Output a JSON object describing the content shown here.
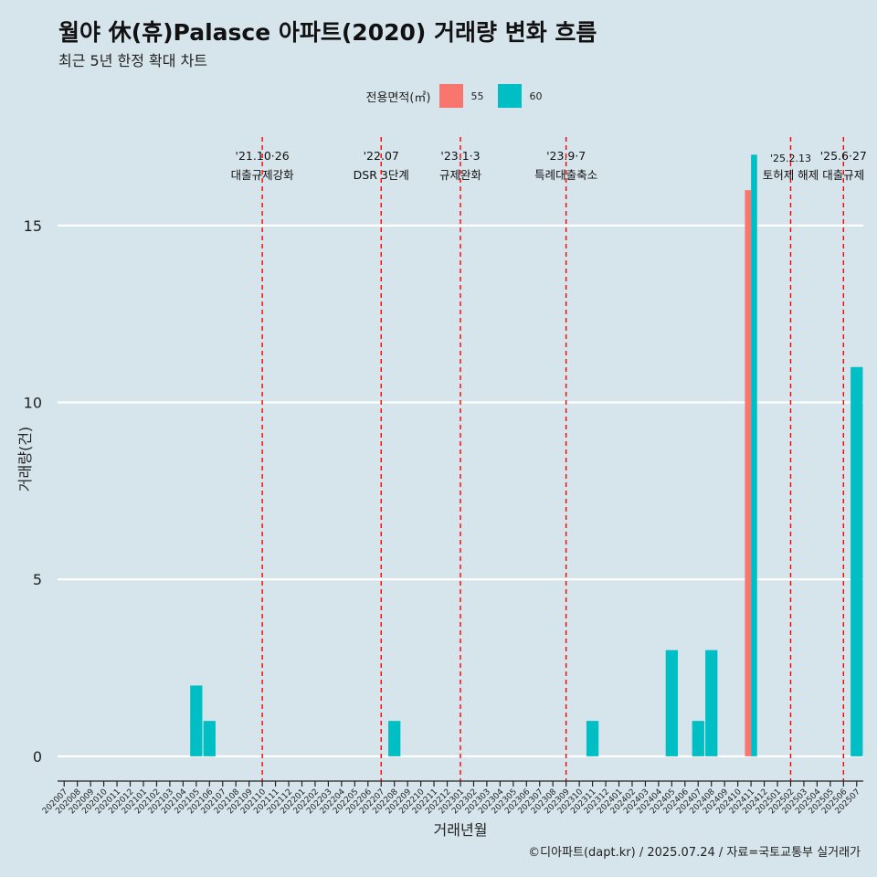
{
  "title": "월야 休(휴)Palasce 아파트(2020) 거래량 변화 흐름",
  "subtitle": "최근 5년 한정 확대 차트",
  "caption": "©디아파트(dapt.kr) / 2025.07.24 / 자료=국토교통부 실거래가",
  "colors": {
    "s55": "#f8766d",
    "s60": "#00bfc4",
    "event": "#ff0000",
    "grid": "#ffffff",
    "background": "#d6e4ec"
  },
  "chart_data": {
    "type": "bar",
    "xlabel": "거래년월",
    "ylabel": "거래량(건)",
    "ylim": [
      -0.7,
      17.5
    ],
    "yticks": [
      0,
      5,
      10,
      15
    ],
    "legend": {
      "title": "전용면적(㎡)",
      "position": "top"
    },
    "categories": [
      "202007",
      "202008",
      "202009",
      "202010",
      "202011",
      "202012",
      "202101",
      "202102",
      "202103",
      "202104",
      "202105",
      "202106",
      "202107",
      "202108",
      "202109",
      "202110",
      "202111",
      "202112",
      "202201",
      "202202",
      "202203",
      "202204",
      "202205",
      "202206",
      "202207",
      "202208",
      "202209",
      "202210",
      "202211",
      "202212",
      "202301",
      "202302",
      "202303",
      "202304",
      "202305",
      "202306",
      "202307",
      "202308",
      "202309",
      "202310",
      "202311",
      "202312",
      "202401",
      "202402",
      "202403",
      "202404",
      "202405",
      "202406",
      "202407",
      "202408",
      "202409",
      "202410",
      "202411",
      "202412",
      "202501",
      "202502",
      "202503",
      "202504",
      "202505",
      "202506",
      "202507"
    ],
    "series": [
      {
        "name": "55",
        "color": "#f8766d",
        "points": [
          {
            "x": "202411",
            "y": 16
          }
        ]
      },
      {
        "name": "60",
        "color": "#00bfc4",
        "points": [
          {
            "x": "202105",
            "y": 2
          },
          {
            "x": "202106",
            "y": 1
          },
          {
            "x": "202208",
            "y": 1
          },
          {
            "x": "202311",
            "y": 1
          },
          {
            "x": "202405",
            "y": 3
          },
          {
            "x": "202407",
            "y": 1
          },
          {
            "x": "202408",
            "y": 3
          },
          {
            "x": "202411",
            "y": 17
          },
          {
            "x": "202507",
            "y": 11
          }
        ]
      }
    ],
    "events": [
      {
        "x": "202110",
        "date": "'21.10·26",
        "label": "대출규제강화"
      },
      {
        "x": "202207",
        "date": "'22.07",
        "label": "DSR 3단계"
      },
      {
        "x": "202301",
        "date": "'23.1·3",
        "label": "규제완화"
      },
      {
        "x": "202309",
        "date": "'23.9·7",
        "label": "특례대출축소"
      },
      {
        "x": "202502",
        "date": "'25.2.13",
        "label": "토허제 해제"
      },
      {
        "x": "202506",
        "date": "'25.6·27",
        "label": "대출규제"
      }
    ]
  }
}
